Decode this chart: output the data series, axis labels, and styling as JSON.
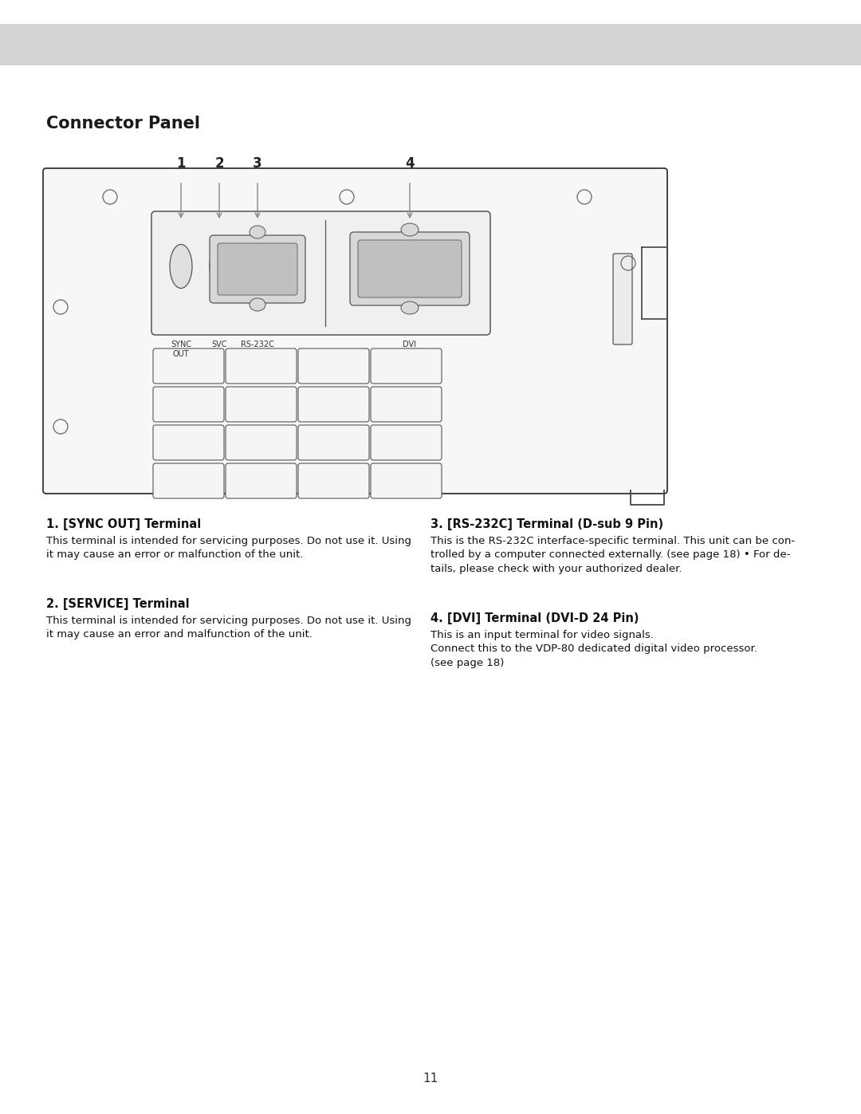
{
  "background_color": "#ffffff",
  "header_bar_color": "#d4d4d4",
  "page_title": "Connector Panel",
  "page_number": "11",
  "section_titles": [
    "1. [SYNC OUT] Terminal",
    "2. [SERVICE] Terminal",
    "3. [RS-232C] Terminal (D-sub 9 Pin)",
    "4. [DVI] Terminal (DVI-D 24 Pin)"
  ],
  "section_bodies": [
    "This terminal is intended for servicing purposes. Do not use it. Using\nit may cause an error or malfunction of the unit.",
    "This terminal is intended for servicing purposes. Do not use it. Using\nit may cause an error and malfunction of the unit.",
    "This is the RS-232C interface-specific terminal. This unit can be con-\ntrolled by a computer connected externally. (see page 18) • For de-\ntails, please check with your authorized dealer.",
    "This is an input terminal for video signals.\nConnect this to the VDP-80 dedicated digital video processor.\n(see page 18)"
  ]
}
